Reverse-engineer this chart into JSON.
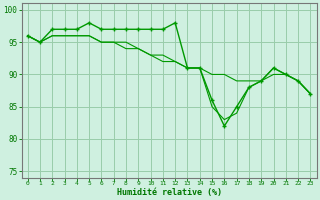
{
  "xlabel": "Humidité relative (%)",
  "background_color": "#cff0e0",
  "grid_color": "#99ccaa",
  "line_color": "#009900",
  "xlim": [
    -0.5,
    23.5
  ],
  "ylim": [
    74,
    101
  ],
  "yticks": [
    75,
    80,
    85,
    90,
    95,
    100
  ],
  "xticks": [
    0,
    1,
    2,
    3,
    4,
    5,
    6,
    7,
    8,
    9,
    10,
    11,
    12,
    13,
    14,
    15,
    16,
    17,
    18,
    19,
    20,
    21,
    22,
    23
  ],
  "series1": [
    96,
    95,
    97,
    97,
    97,
    98,
    97,
    97,
    97,
    97,
    97,
    97,
    98,
    91,
    91,
    86,
    82,
    85,
    88,
    89,
    91,
    90,
    89,
    87
  ],
  "series2": [
    96,
    95,
    96,
    96,
    96,
    96,
    95,
    95,
    95,
    94,
    93,
    93,
    92,
    91,
    91,
    85,
    83,
    84,
    88,
    89,
    91,
    90,
    89,
    87
  ],
  "series3": [
    96,
    95,
    96,
    96,
    96,
    96,
    95,
    95,
    94,
    94,
    93,
    92,
    92,
    91,
    91,
    90,
    90,
    89,
    89,
    89,
    90,
    90,
    89,
    87
  ]
}
